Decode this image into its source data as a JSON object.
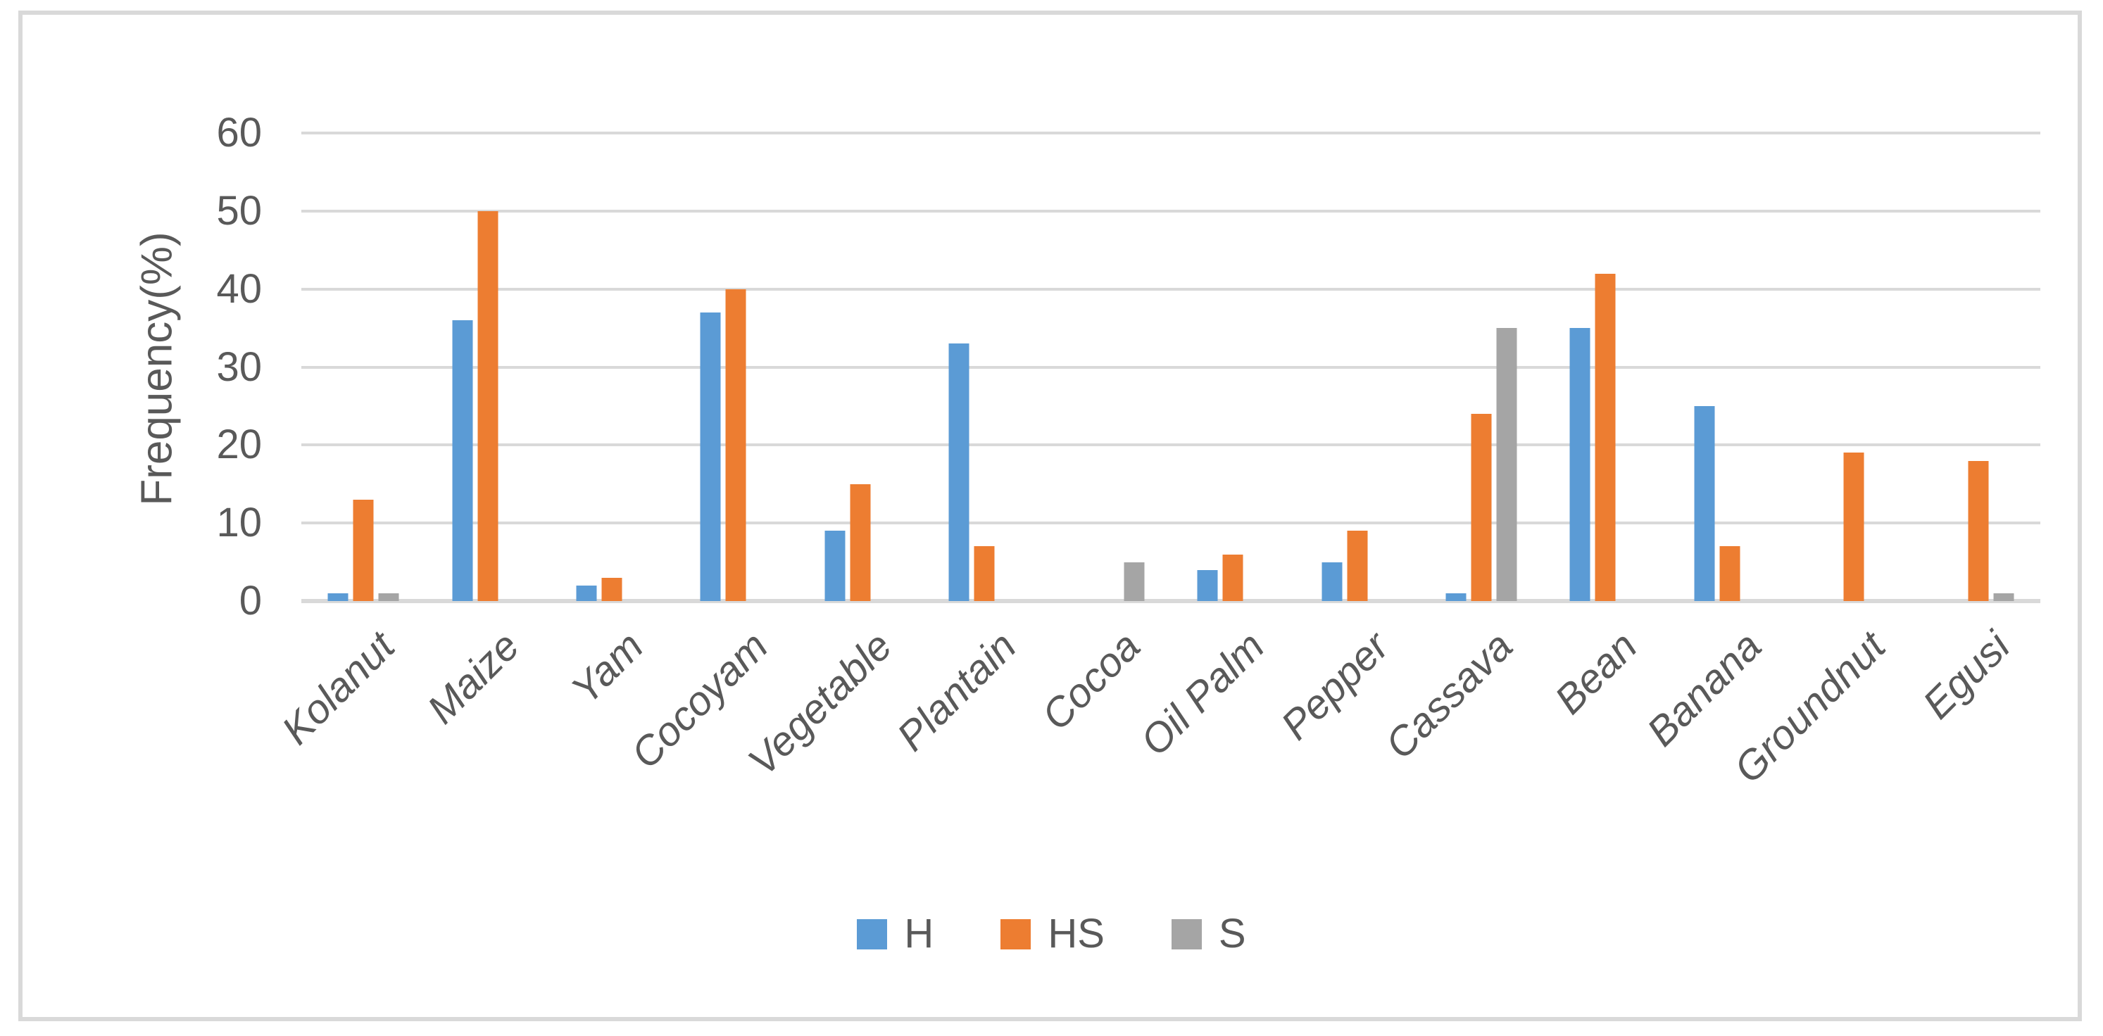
{
  "figure": {
    "background": "#ffffff",
    "frame_color": "#D9D9D9"
  },
  "chart_data": {
    "type": "bar",
    "title": "",
    "ylabel": "Frequency(%)",
    "ylim": [
      0,
      60
    ],
    "yticks": [
      0,
      10,
      20,
      30,
      40,
      50,
      60
    ],
    "grid": true,
    "gridline_color": "#D9D9D9",
    "axis_text_color": "#595959",
    "legend_position": "bottom",
    "categories": [
      "Kolanut",
      "Maize",
      "Yam",
      "Cocoyam",
      "Vegetable",
      "Plantain",
      "Cocoa",
      "Oil Palm",
      "Pepper",
      "Cassava",
      "Bean",
      "Banana",
      "Groundnut",
      "Egusi"
    ],
    "series": [
      {
        "name": "H",
        "color": "#5B9BD5",
        "values": [
          1,
          36,
          2,
          37,
          9,
          33,
          0,
          4,
          5,
          1,
          35,
          25,
          0,
          0
        ]
      },
      {
        "name": "HS",
        "color": "#ED7D31",
        "values": [
          13,
          50,
          3,
          40,
          15,
          7,
          0,
          6,
          9,
          24,
          42,
          7,
          19,
          18
        ]
      },
      {
        "name": "S",
        "color": "#A5A5A5",
        "values": [
          1,
          0,
          0,
          0,
          0,
          0,
          5,
          0,
          0,
          35,
          0,
          0,
          0,
          1
        ]
      }
    ]
  }
}
